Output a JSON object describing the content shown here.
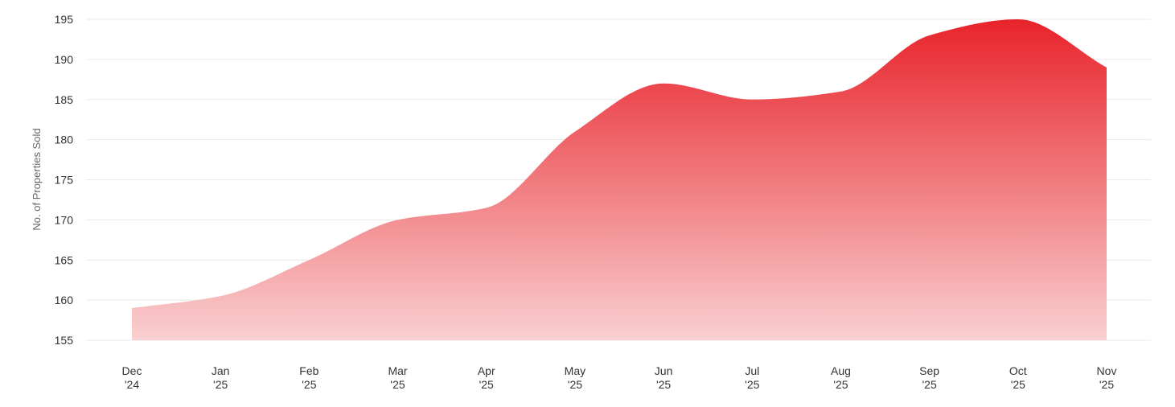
{
  "chart_data": {
    "type": "area",
    "title": "",
    "xlabel": "",
    "ylabel": "No. of Properties Sold",
    "categories": [
      [
        "Dec",
        "'24"
      ],
      [
        "Jan",
        "'25"
      ],
      [
        "Feb",
        "'25"
      ],
      [
        "Mar",
        "'25"
      ],
      [
        "Apr",
        "'25"
      ],
      [
        "May",
        "'25"
      ],
      [
        "Jun",
        "'25"
      ],
      [
        "Jul",
        "'25"
      ],
      [
        "Aug",
        "'25"
      ],
      [
        "Sep",
        "'25"
      ],
      [
        "Oct",
        "'25"
      ],
      [
        "Nov",
        "'25"
      ]
    ],
    "series": [
      {
        "values": [
          159,
          160.5,
          165,
          170,
          171.5,
          181,
          187,
          185,
          186,
          193,
          195,
          189
        ]
      }
    ],
    "ylim": [
      155,
      195
    ],
    "yticks": [
      155,
      160,
      165,
      170,
      175,
      180,
      185,
      190,
      195
    ],
    "grid": true,
    "legend": "none",
    "colors": {
      "fill_top": "#e8232a",
      "fill_bottom": "#f9d0d1",
      "grid": "#e9e9e9",
      "text": "#333333",
      "axis_title": "#666666"
    }
  }
}
